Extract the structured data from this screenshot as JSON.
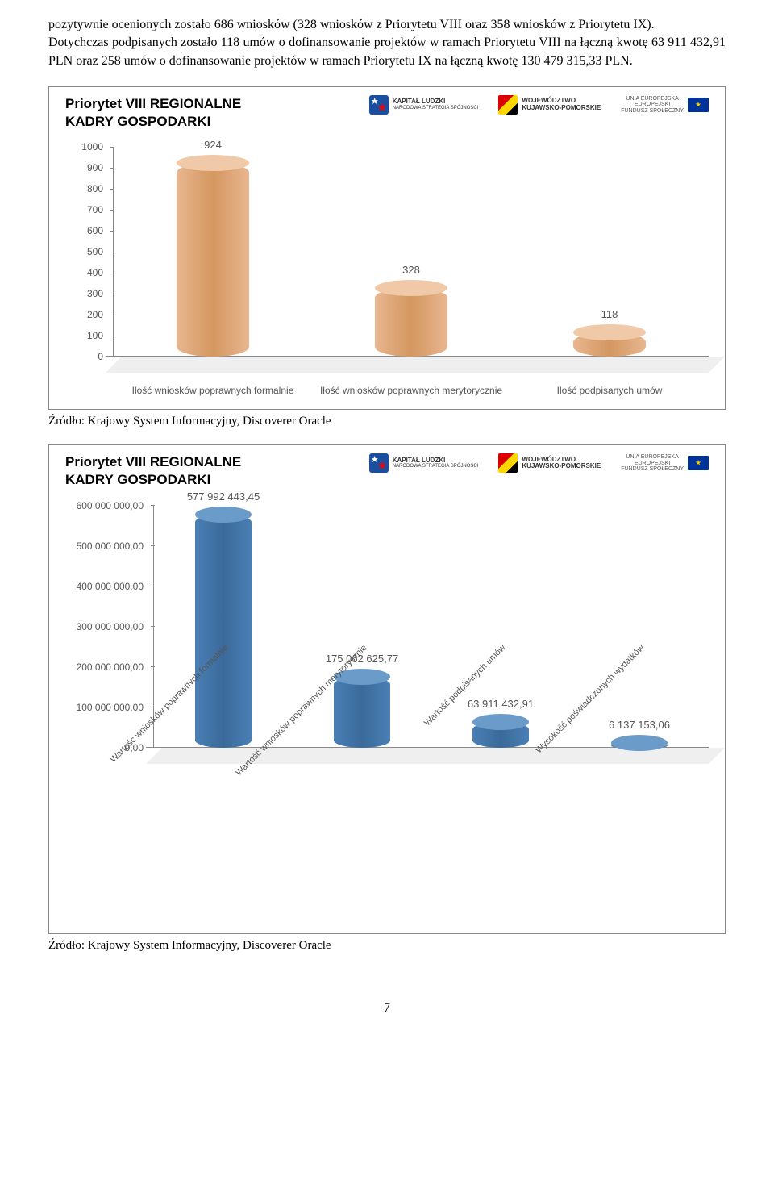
{
  "intro_text": "pozytywnie ocenionych zostało 686 wniosków (328 wniosków z Priorytetu VIII oraz 358 wniosków z Priorytetu IX).\nDotychczas podpisanych zostało 118 umów o dofinansowanie projektów w ramach Priorytetu VIII na łączną kwotę 63 911 432,91 PLN oraz 258 umów o dofinansowanie projektów w ramach Priorytetu IX na łączną kwotę 130 479 315,33 PLN.",
  "chart1": {
    "title": "Priorytet VIII REGIONALNE\nKADRY GOSPODARKI",
    "type": "bar",
    "y_max": 1000,
    "y_ticks": [
      0,
      100,
      200,
      300,
      400,
      500,
      600,
      700,
      800,
      900,
      1000
    ],
    "categories": [
      "Ilość wniosków poprawnych formalnie",
      "Ilość wniosków poprawnych merytorycznie",
      "Ilość podpisanych umów"
    ],
    "values": [
      924,
      328,
      118
    ],
    "bar_color": "#e8b690",
    "bar_top_color": "#f0c9a8",
    "label_fontsize": 12,
    "tick_color": "#555555",
    "background_color": "#ffffff"
  },
  "chart2": {
    "title": "Priorytet VIII REGIONALNE\nKADRY GOSPODARKI",
    "type": "bar",
    "y_max": 600000000,
    "y_ticks_labels": [
      "0,00",
      "100 000 000,00",
      "200 000 000,00",
      "300 000 000,00",
      "400 000 000,00",
      "500 000 000,00",
      "600 000 000,00"
    ],
    "y_ticks": [
      0,
      100000000,
      200000000,
      300000000,
      400000000,
      500000000,
      600000000
    ],
    "categories": [
      "Wartość wniosków poprawnych formalnie",
      "Wartość wniosków poprawnych merytorycznie",
      "Wartość podpisanych umów",
      "Wysokość poświadczonych wydatków"
    ],
    "values": [
      577992443.45,
      175062625.77,
      63911432.91,
      6137153.06
    ],
    "value_labels": [
      "577 992 443,45",
      "175 062 625,77",
      "63 911 432,91",
      "6 137 153,06"
    ],
    "bar_color": "#4a7fb5",
    "bar_top_color": "#6b9bc9",
    "label_fontsize": 11,
    "tick_color": "#555555",
    "background_color": "#ffffff"
  },
  "logos": {
    "kl_label": "KAPITAŁ LUDZKI",
    "kl_sub": "NARODOWA STRATEGIA SPÓJNOŚCI",
    "woj_label": "WOJEWÓDZTWO\nKUJAWSKO-POMORSKIE",
    "eu_label": "UNIA EUROPEJSKA\nEUROPEJSKI\nFUNDUSZ SPOŁECZNY"
  },
  "source_label": "Źródło: Krajowy System Informacyjny, Discoverer Oracle",
  "page_number": "7"
}
